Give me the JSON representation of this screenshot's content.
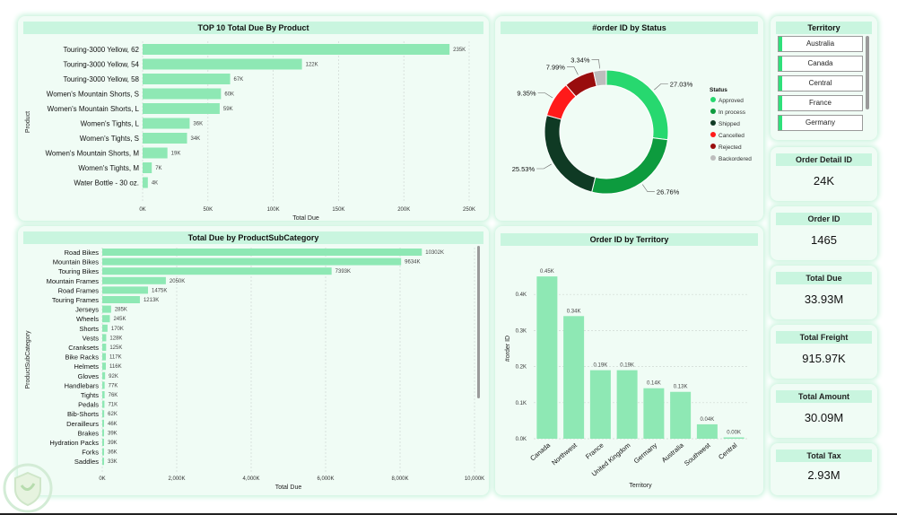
{
  "colors": {
    "bar": "#8ee8b4",
    "status": [
      "#27d86f",
      "#0d9b3e",
      "#0f3a24",
      "#ff1a1a",
      "#990d0d",
      "#bdbdbd"
    ]
  },
  "chart_data": [
    {
      "type": "bar",
      "orientation": "horizontal",
      "title": "TOP 10 Total Due By Product",
      "xlabel": "Total Due",
      "ylabel": "Product",
      "categories": [
        "Touring-3000 Yellow, 62",
        "Touring-3000 Yellow, 54",
        "Touring-3000 Yellow, 58",
        "Women's Mountain Shorts, S",
        "Women's Mountain Shorts, L",
        "Women's Tights, L",
        "Women's Tights, S",
        "Women's Mountain Shorts, M",
        "Women's Tights, M",
        "Water Bottle - 30 oz."
      ],
      "values": [
        235,
        122,
        67,
        60,
        59,
        36,
        34,
        19,
        7,
        4
      ],
      "labels": [
        "235K",
        "122K",
        "67K",
        "60K",
        "59K",
        "36K",
        "34K",
        "19K",
        "7K",
        "4K"
      ],
      "xticks": [
        "0K",
        "50K",
        "100K",
        "150K",
        "200K",
        "250K"
      ],
      "xlim": [
        0,
        250
      ]
    },
    {
      "type": "pie",
      "title": "#order ID by Status",
      "legend_title": "Status",
      "categories": [
        "Approved",
        "In process",
        "Shipped",
        "Cancelled",
        "Rejected",
        "Backordered"
      ],
      "values": [
        27.03,
        26.76,
        25.53,
        9.35,
        7.99,
        3.34
      ],
      "labels": [
        "27.03%",
        "26.76%",
        "25.53%",
        "9.35%",
        "7.99%",
        "3.34%"
      ]
    },
    {
      "type": "bar",
      "orientation": "horizontal",
      "title": "Total Due by ProductSubCategory",
      "xlabel": "Total Due",
      "ylabel": "ProductSubCategory",
      "categories": [
        "Road Bikes",
        "Mountain Bikes",
        "Touring Bikes",
        "Mountain Frames",
        "Road Frames",
        "Touring Frames",
        "Jerseys",
        "Wheels",
        "Shorts",
        "Vests",
        "Cranksets",
        "Bike Racks",
        "Helmets",
        "Gloves",
        "Handlebars",
        "Tights",
        "Pedals",
        "Bib-Shorts",
        "Derailleurs",
        "Brakes",
        "Hydration Packs",
        "Forks",
        "Saddles"
      ],
      "values": [
        10302,
        9634,
        7393,
        2050,
        1475,
        1213,
        285,
        245,
        170,
        128,
        125,
        117,
        116,
        92,
        77,
        76,
        71,
        62,
        46,
        39,
        39,
        36,
        33
      ],
      "labels": [
        "10302K",
        "9634K",
        "7393K",
        "2050K",
        "1475K",
        "1213K",
        "285K",
        "245K",
        "170K",
        "128K",
        "125K",
        "117K",
        "116K",
        "92K",
        "77K",
        "76K",
        "71K",
        "62K",
        "46K",
        "39K",
        "39K",
        "36K",
        "33K"
      ],
      "xticks": [
        "0K",
        "2,000K",
        "4,000K",
        "6,000K",
        "8,000K",
        "10,000K"
      ],
      "xlim": [
        0,
        12000
      ]
    },
    {
      "type": "bar",
      "title": "Order ID by Territory",
      "xlabel": "Territory",
      "ylabel": "#order ID",
      "categories": [
        "Canada",
        "Northwest",
        "France",
        "United Kingdom",
        "Germany",
        "Australia",
        "Southwest",
        "Central"
      ],
      "values": [
        0.45,
        0.34,
        0.19,
        0.19,
        0.14,
        0.13,
        0.04,
        0.0
      ],
      "labels": [
        "0.45K",
        "0.34K",
        "0.19K",
        "0.19K",
        "0.14K",
        "0.13K",
        "0.04K",
        "0.00K"
      ],
      "yticks": [
        "0.0K",
        "0.1K",
        "0.2K",
        "0.3K",
        "0.4K"
      ],
      "ylim": [
        0,
        0.5
      ]
    }
  ],
  "slicer": {
    "title": "Territory",
    "items": [
      "Australia",
      "Canada",
      "Central",
      "France",
      "Germany"
    ]
  },
  "kpis": [
    {
      "title": "Order Detail ID",
      "value": "24K"
    },
    {
      "title": "Order ID",
      "value": "1465"
    },
    {
      "title": "Total Due",
      "value": "33.93M"
    },
    {
      "title": "Total Freight",
      "value": "915.97K"
    },
    {
      "title": "Total Amount",
      "value": "30.09M"
    },
    {
      "title": "Total Tax",
      "value": "2.93M"
    }
  ]
}
